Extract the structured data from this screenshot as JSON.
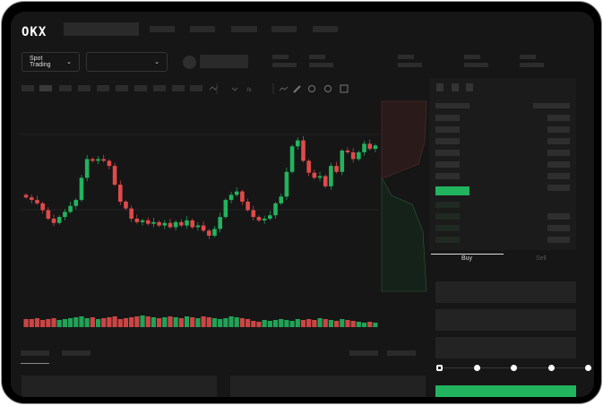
{
  "brand": {
    "logo": "OKX"
  },
  "market_selector": {
    "label": "Spot Trading",
    "icon": "chevron-down-icon"
  },
  "pair_selector": {
    "icon": "chevron-down-icon"
  },
  "toolbar": {
    "icons": [
      "line-icon",
      "pencil-icon",
      "magnet-icon",
      "target-icon",
      "expand-icon"
    ]
  },
  "orderbook": {
    "view_icons": [
      "orderbook-both-icon",
      "orderbook-buy-icon",
      "orderbook-sell-icon"
    ]
  },
  "trade_panel": {
    "tabs": [
      {
        "label": "Buy",
        "active": true
      },
      {
        "label": "Sell",
        "active": false
      }
    ],
    "slider_percent": 0,
    "slider_stops": [
      0,
      25,
      50,
      75,
      100
    ]
  },
  "colors": {
    "up": "#22b35e",
    "down": "#e04a4a",
    "buy_button": "#22b35e"
  },
  "chart_data": {
    "type": "candlestick",
    "close": [
      95,
      92,
      88,
      80,
      70,
      65,
      72,
      78,
      85,
      92,
      118,
      140,
      138,
      140,
      138,
      132,
      110,
      90,
      82,
      70,
      66,
      68,
      64,
      66,
      62,
      65,
      60,
      66,
      62,
      68,
      60,
      62,
      56,
      50,
      58,
      72,
      92,
      98,
      102,
      90,
      80,
      72,
      68,
      70,
      74,
      88,
      96,
      125,
      155,
      162,
      138,
      124,
      118,
      120,
      108,
      132,
      125,
      150,
      148,
      140,
      148,
      158,
      152,
      156
    ],
    "volume": [
      9,
      9,
      10,
      8,
      9,
      10,
      8,
      9,
      10,
      11,
      12,
      10,
      11,
      9,
      10,
      11,
      12,
      9,
      10,
      11,
      12,
      13,
      12,
      11,
      10,
      11,
      12,
      11,
      10,
      12,
      11,
      10,
      12,
      11,
      10,
      9,
      10,
      12,
      11,
      10,
      9,
      7,
      6,
      8,
      7,
      8,
      9,
      8,
      7,
      9,
      8,
      9,
      8,
      10,
      9,
      8,
      7,
      9,
      8,
      7,
      6,
      5,
      6,
      5
    ]
  }
}
